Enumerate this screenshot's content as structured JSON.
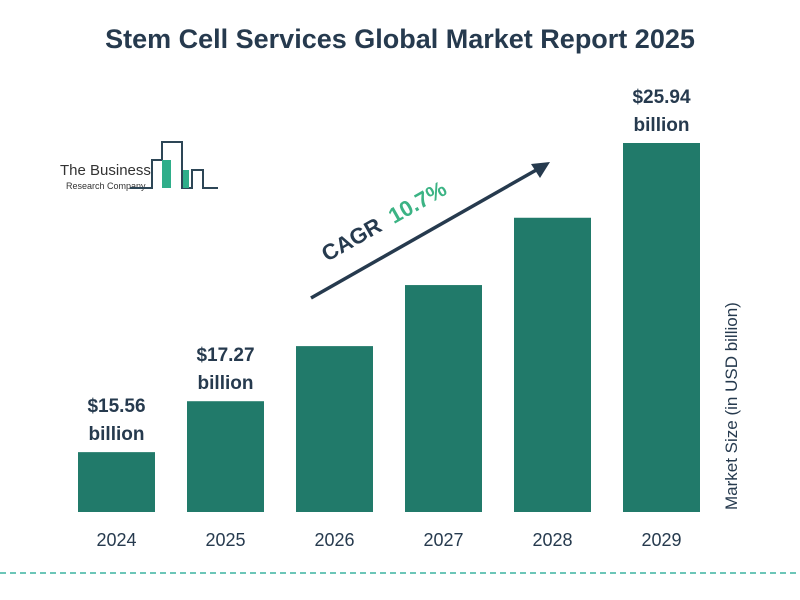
{
  "chart_data": {
    "type": "bar",
    "title": "Stem Cell Services Global Market Report 2025",
    "categories": [
      "2024",
      "2025",
      "2026",
      "2027",
      "2028",
      "2029"
    ],
    "values": [
      15.56,
      17.27,
      19.12,
      21.17,
      23.43,
      25.94
    ],
    "data_labels": [
      {
        "index": 0,
        "line1": "$15.56",
        "line2": "billion"
      },
      {
        "index": 1,
        "line1": "$17.27",
        "line2": "billion"
      },
      {
        "index": 5,
        "line1": "$25.94",
        "line2": "billion"
      }
    ],
    "ylabel": "Market Size (in USD billion)",
    "xlabel": "",
    "grid": false,
    "bar_color": "#217a6a",
    "annotation": {
      "prefix": "CAGR",
      "value": "10.7%",
      "value_color": "#3bb384"
    }
  },
  "logo": {
    "line1": "The Business",
    "line2": "Research Company"
  }
}
